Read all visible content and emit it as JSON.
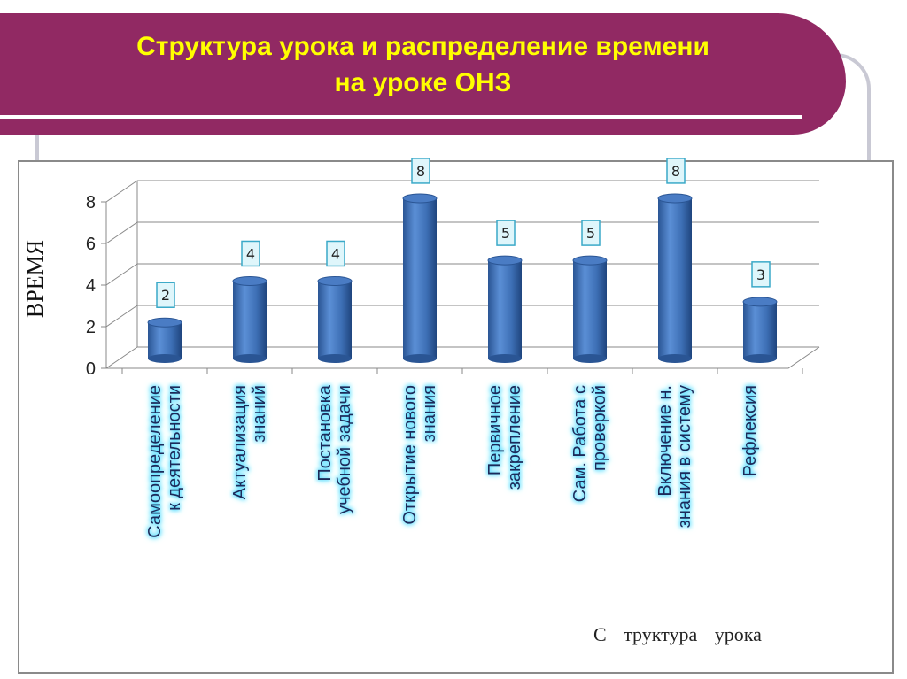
{
  "title_line1": "Структура урока и распределение времени",
  "title_line2": "на уроке ОНЗ",
  "colors": {
    "banner": "#912963",
    "title": "#ffff00",
    "bar": "#3d6fb5",
    "label_glow": "#3fd8ff"
  },
  "chart_data": {
    "type": "bar",
    "style": "3d-cylinder",
    "categories": [
      [
        "Самоопределение",
        "к деятельности"
      ],
      [
        "Актуализация",
        "знаний"
      ],
      [
        "Постановка",
        "учебной задачи"
      ],
      [
        "Открытие нового",
        "знания"
      ],
      [
        "Первичное",
        "закрепление"
      ],
      [
        "Сам. Работа с",
        "проверкой"
      ],
      [
        "Включение н.",
        "знания в систему"
      ],
      [
        "Рефлексия"
      ]
    ],
    "values": [
      2,
      4,
      4,
      8,
      5,
      5,
      8,
      3
    ],
    "ylabel": "ВРЕМЯ",
    "xlabel": "С труктура урока",
    "ylim": [
      0,
      8
    ],
    "yticks": [
      "0",
      "2",
      "4",
      "6",
      "8"
    ],
    "grid": true,
    "data_labels": true
  }
}
